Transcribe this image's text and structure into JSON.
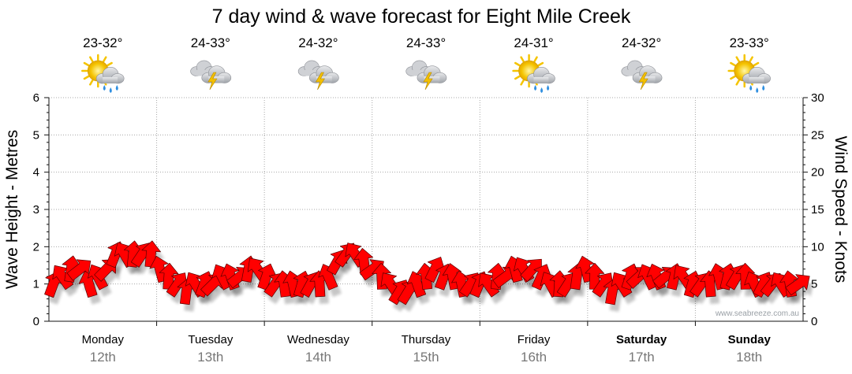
{
  "chart_data": {
    "type": "line",
    "title": "7 day wind & wave forecast for Eight Mile Creek",
    "ylabel_left": "Wave Height - Metres",
    "ylabel_right": "Wind Speed - Knots",
    "ylim_left": [
      0,
      6
    ],
    "ylim_right": [
      0,
      30
    ],
    "yticks_left": [
      "0",
      "1",
      "2",
      "3",
      "4",
      "5",
      "6"
    ],
    "yticks_right": [
      "0",
      "5",
      "10",
      "15",
      "20",
      "25",
      "30"
    ],
    "days": [
      {
        "name": "Monday",
        "date": "12th",
        "temp": "23-32°",
        "weather": "sun-showers",
        "weekend": false
      },
      {
        "name": "Tuesday",
        "date": "13th",
        "temp": "24-33°",
        "weather": "thunderstorm",
        "weekend": false
      },
      {
        "name": "Wednesday",
        "date": "14th",
        "temp": "24-32°",
        "weather": "thunderstorm",
        "weekend": false
      },
      {
        "name": "Thursday",
        "date": "15th",
        "temp": "24-33°",
        "weather": "thunderstorm",
        "weekend": false
      },
      {
        "name": "Friday",
        "date": "16th",
        "temp": "24-31°",
        "weather": "sun-showers",
        "weekend": false
      },
      {
        "name": "Saturday",
        "date": "17th",
        "temp": "24-32°",
        "weather": "thunderstorm",
        "weekend": true
      },
      {
        "name": "Sunday",
        "date": "18th",
        "temp": "23-33°",
        "weather": "sun-showers",
        "weekend": true
      }
    ],
    "series": [
      {
        "name": "Wind speed (knots) with direction arrows",
        "y_axis": "right",
        "values": [
          5,
          6,
          7,
          7,
          5,
          6,
          7,
          9,
          9,
          9,
          9,
          9,
          7,
          6,
          5,
          4,
          5,
          5,
          5,
          6,
          6,
          6,
          7,
          7,
          6,
          5,
          5,
          5,
          5,
          5,
          5,
          6,
          8,
          9,
          9,
          8,
          7,
          6,
          5,
          4,
          4,
          5,
          6,
          7,
          6,
          6,
          5,
          5,
          5,
          5,
          6,
          6,
          7,
          7,
          7,
          6,
          5,
          5,
          5,
          6,
          7,
          6,
          5,
          4,
          5,
          6,
          6,
          6,
          6,
          6,
          6,
          6,
          5,
          5,
          5,
          6,
          6,
          6,
          6,
          5,
          5,
          5,
          5,
          5,
          5
        ]
      }
    ],
    "credit": "www.seabreeze.com.au"
  },
  "icons": {
    "sun_color": "#f5c400",
    "cloud_color": "#b9bcc2",
    "bolt_color": "#f3c000",
    "rain_color": "#2f8fe0",
    "arrow_fill": "#ff0000",
    "arrow_stroke": "#5a0000"
  }
}
